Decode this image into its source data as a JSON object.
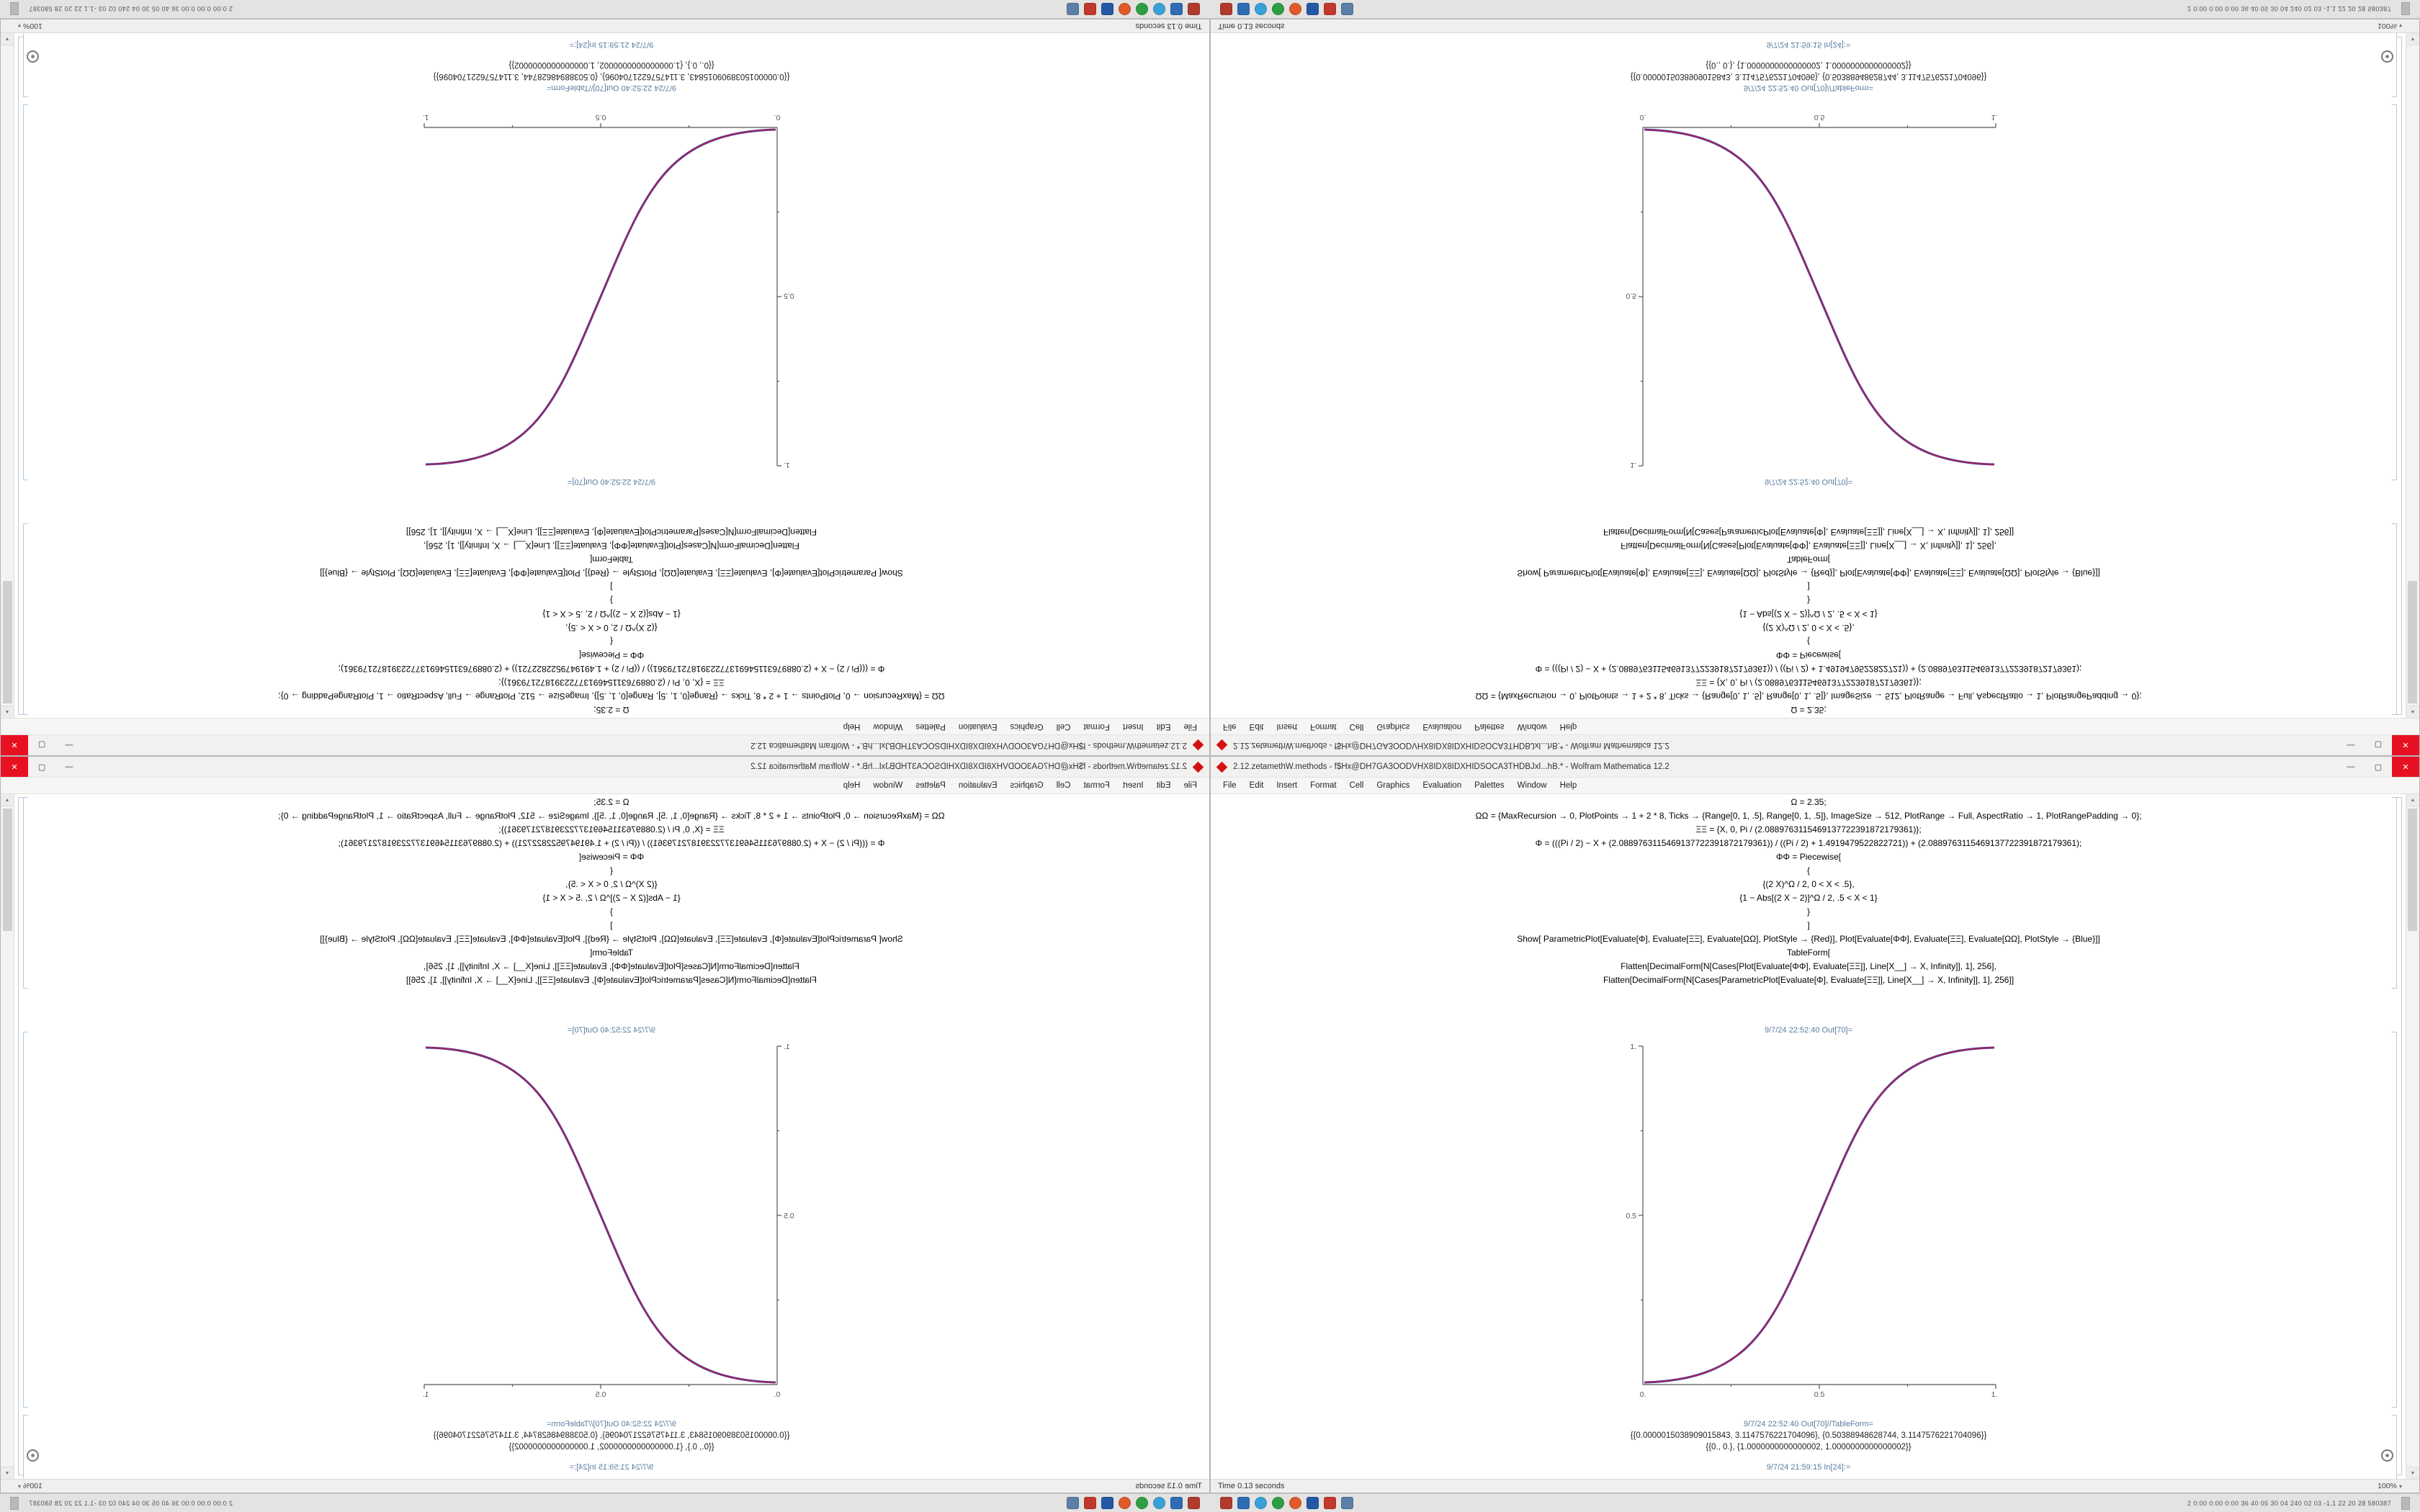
{
  "window": {
    "title": "2.12.zetamethW.methods - f$Hx@DH7GA3OODVHX8IDX8IDXHIDSOCA3THDBJxl...hB.* - Wolfram Mathematica 12.2",
    "menu": [
      "File",
      "Edit",
      "Insert",
      "Format",
      "Cell",
      "Graphics",
      "Evaluation",
      "Palettes",
      "Window",
      "Help"
    ],
    "controls": {
      "minimize": "—",
      "maximize": "▢",
      "close": "✕"
    },
    "status_text": "Time 0.13 seconds",
    "zoom": "100%"
  },
  "notebook": {
    "in_lines": [
      "Ω = 2.35;",
      "ΩΩ = {MaxRecursion → 0, PlotPoints → 1 + 2 * 8, Ticks → {Range[0, 1, .5], Range[0, 1, .5]}, ImageSize → 512, PlotRange → Full, AspectRatio → 1, PlotRangePadding → 0};",
      "ΞΞ = {X, 0, Pi / (2.0889763115469137722391872179361)};",
      "Φ = (((Pi / 2) − X + (2.0889763115469137722391872179361)) / ((Pi / 2) + 1.4919479522822721)) + (2.0889763115469137722391872179361);",
      "ΦΦ = Piecewise[",
      "{",
      "{(2 X)^Ω / 2, 0 < X < .5},",
      "{1 − Abs[(2 X − 2)]^Ω / 2, .5 < X < 1}",
      "}",
      "]",
      "Show[ ParametricPlot[Evaluate[Φ], Evaluate[ΞΞ], Evaluate[ΩΩ], PlotStyle → {Red}],  Plot[Evaluate[ΦΦ], Evaluate[ΞΞ], Evaluate[ΩΩ], PlotStyle → {Blue}]]",
      "TableForm[",
      "Flatten[DecimalForm[N[Cases[Plot[Evaluate[ΦΦ], Evaluate[ΞΞ]], Line[X__] → X, Infinity]], 1], 256],",
      "Flatten[DecimalForm[N[Cases[ParametricPlot[Evaluate[Φ], Evaluate[ΞΞ]], Line[X__] → X, Infinity]], 1], 256]]"
    ],
    "out_plot_label": "9/7/24 22:52:40 Out[70]=",
    "out_table_label": "9/7/24 22:52:40 Out[70]//TableForm=",
    "table_lines": [
      "{{0.0000015038909015843, 3.1147576221704096}, {0.50388948628744, 3.1147576221704096}}",
      "{{0., 0.}, {1.0000000000000002, 1.0000000000000002}}"
    ],
    "next_in_label": "9/7/24 21:59:15 In[24]:=",
    "plot": {
      "type": "line",
      "y_top": "1.",
      "y_mid": "0.5",
      "x_left": "0.",
      "x_mid": "0.5",
      "x_right": "1.",
      "x_range": [
        0,
        1
      ],
      "y_range": [
        0,
        1
      ],
      "curve": "sigmoid rising from (0,0) to (1,1)",
      "curve_colors": [
        "#3535bd",
        "#cc2424"
      ]
    }
  },
  "taskbar": {
    "metrics_text": "2  0:00 0:00 0:00  36 40 05 30 04 240 02 03  -1.1 22 20 28  580387",
    "icons": [
      {
        "name": "taskbar-app-red",
        "color": "#b03a2e",
        "shape": "square"
      },
      {
        "name": "taskbar-app-blue",
        "color": "#2e6db4",
        "shape": "square"
      },
      {
        "name": "taskbar-app-lightblue",
        "color": "#3aa0d8",
        "shape": "circle"
      },
      {
        "name": "taskbar-app-green",
        "color": "#2e9e44",
        "shape": "circle"
      },
      {
        "name": "taskbar-app-orange",
        "color": "#e05a2b",
        "shape": "circle"
      },
      {
        "name": "taskbar-app-navy",
        "color": "#2458a6",
        "shape": "square"
      },
      {
        "name": "taskbar-app-crimson",
        "color": "#c0392b",
        "shape": "square"
      },
      {
        "name": "taskbar-app-steel",
        "color": "#5b7fa6",
        "shape": "square"
      }
    ]
  }
}
